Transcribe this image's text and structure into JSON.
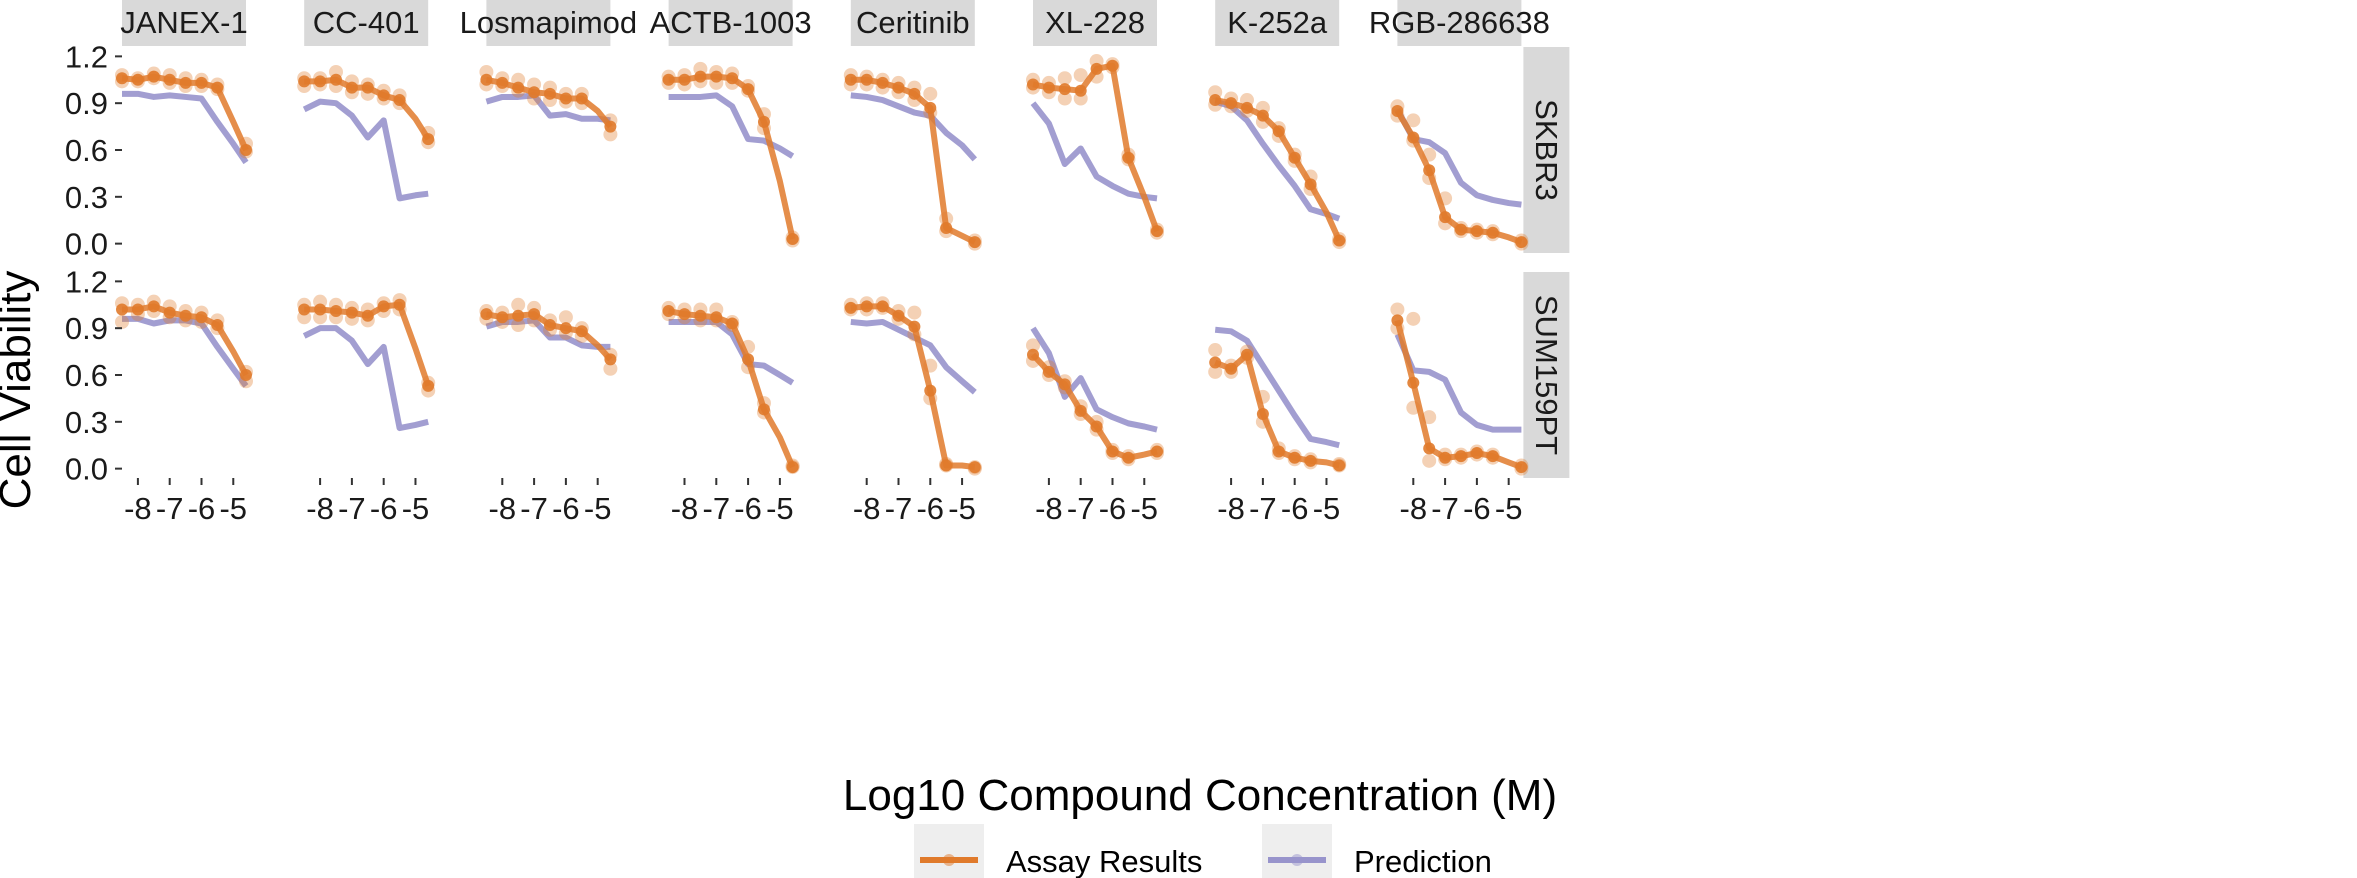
{
  "colors": {
    "assay": "#e07a2b",
    "prediction": "#9894cc",
    "strip_bg": "#d9d9d9",
    "tick": "#333333"
  },
  "chart_data": {
    "type": "line",
    "xlabel": "Log10 Compound Concentration (M)",
    "ylabel": "Cell Viability",
    "xlim": [
      -8.5,
      -4.6
    ],
    "ylim": [
      -0.06,
      1.26
    ],
    "x_ticks": [
      -8,
      -7,
      -6,
      -5
    ],
    "x_tick_labels": [
      "-8",
      "-7",
      "-6",
      "-5"
    ],
    "y_ticks": [
      0.0,
      0.3,
      0.6,
      0.9,
      1.2
    ],
    "y_tick_labels": [
      "0.0",
      "0.3",
      "0.6",
      "0.9",
      "1.2"
    ],
    "compounds": [
      "JANEX-1",
      "CC-401",
      "Losmapimod",
      "ACTB-1003",
      "Ceritinib",
      "XL-228",
      "K-252a",
      "RGB-286638"
    ],
    "cell_lines": [
      "SKBR3",
      "SUM159PT"
    ],
    "x": [
      -8.5,
      -8,
      -7.5,
      -7,
      -6.5,
      -6,
      -5.5,
      -5,
      -4.6
    ],
    "legend": [
      "Assay Results",
      "Prediction"
    ],
    "legend_position": "bottom",
    "panels": [
      {
        "row": 0,
        "col": 0,
        "assay": [
          1.06,
          1.05,
          1.07,
          1.05,
          1.03,
          1.03,
          1.0,
          0.78,
          0.6
        ],
        "prediction": [
          0.96,
          0.96,
          0.94,
          0.95,
          0.94,
          0.93,
          0.78,
          0.64,
          0.52
        ],
        "assay_reps": [
          [
            1.08,
            1.04
          ],
          [
            1.06,
            1.04
          ],
          [
            1.09,
            1.06
          ],
          [
            1.08,
            1.03
          ],
          [
            1.06,
            1.01
          ],
          [
            1.05,
            1.01
          ],
          [
            1.02,
            0.99
          ],
          null,
          [
            0.64,
            0.59
          ]
        ]
      },
      {
        "row": 0,
        "col": 1,
        "assay": [
          1.04,
          1.04,
          1.05,
          1.0,
          1.0,
          0.95,
          0.92,
          0.8,
          0.67
        ],
        "prediction": [
          0.86,
          0.91,
          0.9,
          0.82,
          0.68,
          0.79,
          0.29,
          0.31,
          0.32
        ],
        "assay_reps": [
          [
            1.06,
            1.01
          ],
          [
            1.06,
            1.02
          ],
          [
            1.1,
            1.01
          ],
          [
            1.04,
            0.97
          ],
          [
            1.02,
            0.96
          ],
          [
            0.98,
            0.93
          ],
          [
            0.95,
            0.9
          ],
          null,
          [
            0.71,
            0.65
          ]
        ]
      },
      {
        "row": 0,
        "col": 2,
        "assay": [
          1.05,
          1.03,
          1.0,
          0.97,
          0.96,
          0.93,
          0.93,
          0.85,
          0.75
        ],
        "prediction": [
          0.91,
          0.94,
          0.94,
          0.95,
          0.82,
          0.83,
          0.8,
          0.8,
          0.79
        ],
        "assay_reps": [
          [
            1.1,
            1.02
          ],
          [
            1.06,
            1.01
          ],
          [
            1.05,
            0.98
          ],
          [
            1.02,
            0.93
          ],
          [
            1.0,
            0.92
          ],
          [
            0.96,
            0.91
          ],
          [
            0.96,
            0.9
          ],
          null,
          [
            0.79,
            0.7
          ]
        ]
      },
      {
        "row": 0,
        "col": 3,
        "assay": [
          1.05,
          1.05,
          1.07,
          1.07,
          1.06,
          0.99,
          0.78,
          0.4,
          0.03
        ],
        "prediction": [
          0.94,
          0.94,
          0.94,
          0.95,
          0.88,
          0.67,
          0.66,
          0.61,
          0.56
        ],
        "assay_reps": [
          [
            1.07,
            1.03
          ],
          [
            1.08,
            1.02
          ],
          [
            1.12,
            1.04
          ],
          [
            1.1,
            1.03
          ],
          [
            1.09,
            1.03
          ],
          [
            1.01,
            0.98
          ],
          [
            0.83,
            0.74
          ],
          null,
          [
            0.04,
            0.02
          ]
        ]
      },
      {
        "row": 0,
        "col": 4,
        "assay": [
          1.05,
          1.05,
          1.03,
          1.0,
          0.96,
          0.87,
          0.1,
          0.05,
          0.01
        ],
        "prediction": [
          0.95,
          0.94,
          0.92,
          0.88,
          0.84,
          0.82,
          0.71,
          0.63,
          0.54
        ],
        "assay_reps": [
          [
            1.08,
            1.02
          ],
          [
            1.07,
            1.02
          ],
          [
            1.05,
            1.0
          ],
          [
            1.03,
            0.97
          ],
          [
            1.0,
            0.92
          ],
          [
            0.96,
            0.84
          ],
          [
            0.16,
            0.08
          ],
          null,
          [
            0.02,
            0.0
          ]
        ]
      },
      {
        "row": 0,
        "col": 5,
        "assay": [
          1.02,
          1.0,
          0.99,
          0.98,
          1.12,
          1.14,
          0.55,
          0.3,
          0.08
        ],
        "prediction": [
          0.9,
          0.77,
          0.51,
          0.61,
          0.43,
          0.37,
          0.32,
          0.3,
          0.29
        ],
        "assay_reps": [
          [
            1.05,
            1.0
          ],
          [
            1.03,
            0.97
          ],
          [
            1.06,
            0.93
          ],
          [
            1.08,
            0.93
          ],
          [
            1.17,
            1.07
          ],
          [
            1.15,
            1.13
          ],
          [
            0.57,
            0.54
          ],
          null,
          [
            0.09,
            0.07
          ]
        ]
      },
      {
        "row": 0,
        "col": 6,
        "assay": [
          0.92,
          0.9,
          0.87,
          0.82,
          0.72,
          0.55,
          0.38,
          0.2,
          0.02
        ],
        "prediction": [
          0.91,
          0.88,
          0.79,
          0.64,
          0.5,
          0.37,
          0.22,
          0.19,
          0.16
        ],
        "assay_reps": [
          [
            0.97,
            0.89
          ],
          [
            0.93,
            0.88
          ],
          [
            0.92,
            0.85
          ],
          [
            0.87,
            0.78
          ],
          [
            0.74,
            0.69
          ],
          [
            0.57,
            0.53
          ],
          [
            0.43,
            0.35
          ],
          null,
          [
            0.03,
            0.01
          ]
        ]
      },
      {
        "row": 0,
        "col": 7,
        "assay": [
          0.85,
          0.68,
          0.47,
          0.17,
          0.09,
          0.08,
          0.07,
          0.04,
          0.01
        ],
        "prediction": [
          0.86,
          0.67,
          0.65,
          0.58,
          0.39,
          0.31,
          0.28,
          0.26,
          0.25
        ],
        "assay_reps": [
          [
            0.88,
            0.82
          ],
          [
            0.79,
            0.66
          ],
          [
            0.57,
            0.42
          ],
          [
            0.29,
            0.13
          ],
          [
            0.1,
            0.08
          ],
          [
            0.09,
            0.07
          ],
          [
            0.08,
            0.06
          ],
          null,
          [
            0.02,
            0.0
          ]
        ]
      },
      {
        "row": 1,
        "col": 0,
        "assay": [
          1.02,
          1.02,
          1.04,
          1.0,
          0.98,
          0.97,
          0.92,
          0.75,
          0.6
        ],
        "prediction": [
          0.96,
          0.96,
          0.93,
          0.95,
          0.95,
          0.93,
          0.78,
          0.64,
          0.53
        ],
        "assay_reps": [
          [
            1.06,
            0.94
          ],
          [
            1.05,
            0.99
          ],
          [
            1.07,
            1.01
          ],
          [
            1.04,
            0.97
          ],
          [
            1.01,
            0.95
          ],
          [
            1.0,
            0.94
          ],
          [
            0.95,
            0.9
          ],
          null,
          [
            0.62,
            0.56
          ]
        ]
      },
      {
        "row": 1,
        "col": 1,
        "assay": [
          1.02,
          1.02,
          1.01,
          1.0,
          0.98,
          1.04,
          1.05,
          0.77,
          0.53
        ],
        "prediction": [
          0.85,
          0.9,
          0.9,
          0.82,
          0.67,
          0.78,
          0.26,
          0.28,
          0.3
        ],
        "assay_reps": [
          [
            1.05,
            0.97
          ],
          [
            1.07,
            0.97
          ],
          [
            1.05,
            0.97
          ],
          [
            1.03,
            0.96
          ],
          [
            1.02,
            0.95
          ],
          [
            1.06,
            1.01
          ],
          [
            1.08,
            1.02
          ],
          null,
          [
            0.55,
            0.5
          ]
        ]
      },
      {
        "row": 1,
        "col": 2,
        "assay": [
          0.99,
          0.97,
          0.98,
          0.99,
          0.92,
          0.9,
          0.88,
          0.79,
          0.7
        ],
        "prediction": [
          0.91,
          0.94,
          0.94,
          0.95,
          0.84,
          0.84,
          0.79,
          0.78,
          0.78
        ],
        "assay_reps": [
          [
            1.01,
            0.96
          ],
          [
            1.0,
            0.94
          ],
          [
            1.05,
            0.92
          ],
          [
            1.03,
            0.95
          ],
          [
            0.95,
            0.89
          ],
          [
            0.97,
            0.87
          ],
          [
            0.9,
            0.85
          ],
          null,
          [
            0.73,
            0.64
          ]
        ]
      },
      {
        "row": 1,
        "col": 3,
        "assay": [
          1.01,
          0.99,
          0.98,
          0.97,
          0.93,
          0.7,
          0.38,
          0.2,
          0.01
        ],
        "prediction": [
          0.94,
          0.94,
          0.94,
          0.94,
          0.86,
          0.67,
          0.66,
          0.6,
          0.55
        ],
        "assay_reps": [
          [
            1.03,
            0.99
          ],
          [
            1.02,
            0.97
          ],
          [
            1.02,
            0.95
          ],
          [
            1.02,
            0.95
          ],
          [
            0.94,
            0.92
          ],
          [
            0.78,
            0.65
          ],
          [
            0.42,
            0.36
          ],
          null,
          [
            0.02,
            0.01
          ]
        ]
      },
      {
        "row": 1,
        "col": 4,
        "assay": [
          1.03,
          1.04,
          1.04,
          0.98,
          0.91,
          0.5,
          0.02,
          0.02,
          0.01
        ],
        "prediction": [
          0.94,
          0.93,
          0.94,
          0.89,
          0.84,
          0.79,
          0.65,
          0.56,
          0.49
        ],
        "assay_reps": [
          [
            1.05,
            1.02
          ],
          [
            1.06,
            1.02
          ],
          [
            1.06,
            1.03
          ],
          [
            1.01,
            0.96
          ],
          [
            1.0,
            0.86
          ],
          [
            0.66,
            0.45
          ],
          [
            0.03,
            0.02
          ],
          null,
          [
            0.01,
            0.0
          ]
        ]
      },
      {
        "row": 1,
        "col": 5,
        "assay": [
          0.73,
          0.62,
          0.54,
          0.37,
          0.27,
          0.11,
          0.07,
          0.09,
          0.11
        ],
        "prediction": [
          0.9,
          0.74,
          0.46,
          0.58,
          0.38,
          0.33,
          0.29,
          0.27,
          0.25
        ],
        "assay_reps": [
          [
            0.79,
            0.69
          ],
          [
            0.65,
            0.6
          ],
          [
            0.56,
            0.52
          ],
          [
            0.4,
            0.35
          ],
          [
            0.3,
            0.25
          ],
          [
            0.12,
            0.1
          ],
          [
            0.08,
            0.06
          ],
          null,
          [
            0.12,
            0.1
          ]
        ]
      },
      {
        "row": 1,
        "col": 6,
        "assay": [
          0.68,
          0.64,
          0.73,
          0.35,
          0.11,
          0.07,
          0.05,
          0.04,
          0.02
        ],
        "prediction": [
          0.89,
          0.88,
          0.82,
          0.66,
          0.5,
          0.34,
          0.19,
          0.17,
          0.15
        ],
        "assay_reps": [
          [
            0.76,
            0.62
          ],
          [
            0.66,
            0.62
          ],
          [
            0.75,
            0.71
          ],
          [
            0.46,
            0.3
          ],
          [
            0.13,
            0.1
          ],
          [
            0.08,
            0.06
          ],
          [
            0.06,
            0.04
          ],
          null,
          [
            0.03,
            0.02
          ]
        ]
      },
      {
        "row": 1,
        "col": 7,
        "assay": [
          0.95,
          0.55,
          0.13,
          0.07,
          0.08,
          0.1,
          0.08,
          0.04,
          0.01
        ],
        "prediction": [
          0.86,
          0.63,
          0.62,
          0.57,
          0.36,
          0.28,
          0.25,
          0.25,
          0.25
        ],
        "assay_reps": [
          [
            1.02,
            0.9
          ],
          [
            0.96,
            0.39
          ],
          [
            0.33,
            0.05
          ],
          [
            0.09,
            0.06
          ],
          [
            0.09,
            0.07
          ],
          [
            0.11,
            0.09
          ],
          [
            0.09,
            0.07
          ],
          null,
          [
            0.02,
            0.0
          ]
        ]
      }
    ]
  }
}
